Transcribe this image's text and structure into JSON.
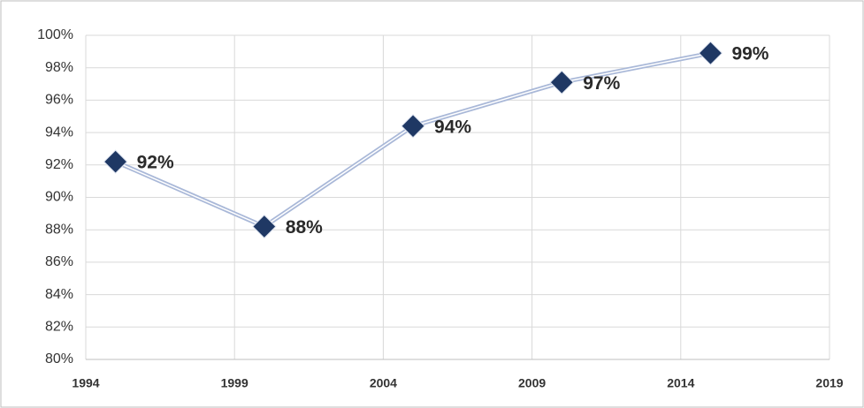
{
  "chart_data": {
    "type": "line",
    "x": [
      1995,
      2000,
      2005,
      2010,
      2015
    ],
    "series": [
      {
        "color": "#1f3864",
        "line_color": "#a9b8d8",
        "values": [
          92.2,
          88.2,
          94.4,
          97.1,
          98.9
        ],
        "value_labels": [
          "92%",
          "88%",
          "94%",
          "97%",
          "99%"
        ]
      }
    ],
    "xlim": [
      1994,
      2019
    ],
    "xticks": [
      1994,
      1999,
      2004,
      2009,
      2014,
      2019
    ],
    "ylim": [
      80,
      100
    ],
    "yticks": [
      {
        "value": 80,
        "label": "80%"
      },
      {
        "value": 82,
        "label": "82%"
      },
      {
        "value": 84,
        "label": "84%"
      },
      {
        "value": 86,
        "label": "86%"
      },
      {
        "value": 88,
        "label": "88%"
      },
      {
        "value": 90,
        "label": "90%"
      },
      {
        "value": 92,
        "label": "92%"
      },
      {
        "value": 94,
        "label": "94%"
      },
      {
        "value": 96,
        "label": "96%"
      },
      {
        "value": 98,
        "label": "98%"
      },
      {
        "value": 100,
        "label": "100%"
      }
    ],
    "grid": true
  }
}
